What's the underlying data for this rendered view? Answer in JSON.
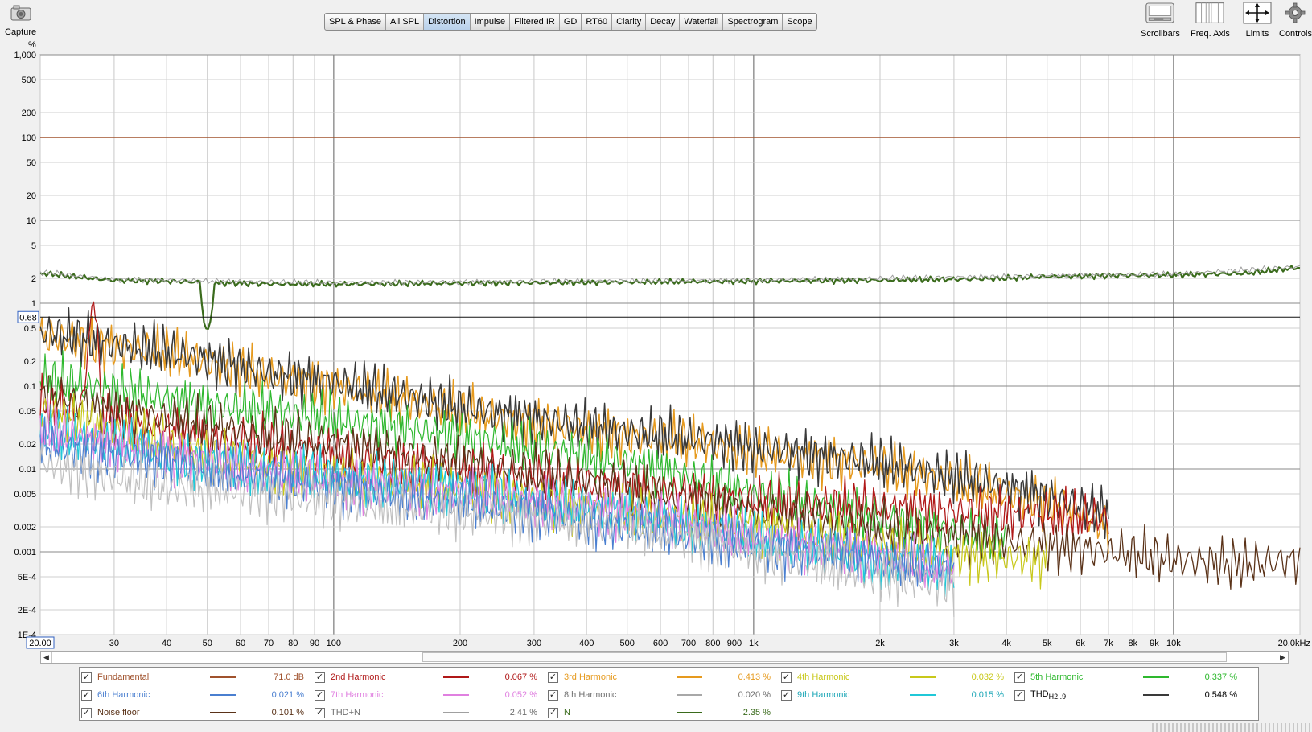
{
  "toolbar": {
    "capture_label": "Capture",
    "tabs": [
      "SPL & Phase",
      "All SPL",
      "Distortion",
      "Impulse",
      "Filtered IR",
      "GD",
      "RT60",
      "Clarity",
      "Decay",
      "Waterfall",
      "Spectrogram",
      "Scope"
    ],
    "active_tab": "Distortion",
    "right_buttons": [
      {
        "label": "Scrollbars",
        "icon": "scrollbars-icon"
      },
      {
        "label": "Freq. Axis",
        "icon": "freq-axis-icon"
      },
      {
        "label": "Limits",
        "icon": "limits-icon"
      },
      {
        "label": "Controls",
        "icon": "gear-icon"
      }
    ]
  },
  "graph": {
    "y_unit": "%",
    "cursor_value": "0.68",
    "x_start_value": "20.00",
    "x_end_value": "20.0kHz"
  },
  "chart_data": {
    "type": "line",
    "x_scale": "log",
    "y_scale": "log",
    "xlim": [
      20,
      20000
    ],
    "ylim": [
      0.0001,
      1000
    ],
    "x_ticks": [
      {
        "v": 30,
        "t": "30"
      },
      {
        "v": 40,
        "t": "40"
      },
      {
        "v": 50,
        "t": "50"
      },
      {
        "v": 60,
        "t": "60"
      },
      {
        "v": 70,
        "t": "70"
      },
      {
        "v": 80,
        "t": "80"
      },
      {
        "v": 90,
        "t": "90"
      },
      {
        "v": 100,
        "t": "100"
      },
      {
        "v": 200,
        "t": "200"
      },
      {
        "v": 300,
        "t": "300"
      },
      {
        "v": 400,
        "t": "400"
      },
      {
        "v": 500,
        "t": "500"
      },
      {
        "v": 600,
        "t": "600"
      },
      {
        "v": 700,
        "t": "700"
      },
      {
        "v": 800,
        "t": "800"
      },
      {
        "v": 900,
        "t": "900"
      },
      {
        "v": 1000,
        "t": "1k"
      },
      {
        "v": 2000,
        "t": "2k"
      },
      {
        "v": 3000,
        "t": "3k"
      },
      {
        "v": 4000,
        "t": "4k"
      },
      {
        "v": 5000,
        "t": "5k"
      },
      {
        "v": 6000,
        "t": "6k"
      },
      {
        "v": 7000,
        "t": "7k"
      },
      {
        "v": 8000,
        "t": "8k"
      },
      {
        "v": 9000,
        "t": "9k"
      },
      {
        "v": 10000,
        "t": "10k"
      }
    ],
    "y_ticks": [
      {
        "v": 1000,
        "t": "1,000"
      },
      {
        "v": 500,
        "t": "500"
      },
      {
        "v": 200,
        "t": "200"
      },
      {
        "v": 100,
        "t": "100"
      },
      {
        "v": 50,
        "t": "50"
      },
      {
        "v": 20,
        "t": "20"
      },
      {
        "v": 10,
        "t": "10"
      },
      {
        "v": 5,
        "t": "5"
      },
      {
        "v": 2,
        "t": "2"
      },
      {
        "v": 1,
        "t": "1"
      },
      {
        "v": 0.5,
        "t": "0.5"
      },
      {
        "v": 0.2,
        "t": "0.2"
      },
      {
        "v": 0.1,
        "t": "0.1"
      },
      {
        "v": 0.05,
        "t": "0.05"
      },
      {
        "v": 0.02,
        "t": "0.02"
      },
      {
        "v": 0.01,
        "t": "0.01"
      },
      {
        "v": 0.005,
        "t": "0.005"
      },
      {
        "v": 0.002,
        "t": "0.002"
      },
      {
        "v": 0.001,
        "t": "0.001"
      },
      {
        "v": 0.0005,
        "t": "5E-4"
      },
      {
        "v": 0.0002,
        "t": "2E-4"
      },
      {
        "v": 0.0001,
        "t": "1E-4"
      }
    ],
    "cursor_y": 0.68,
    "series": [
      {
        "name": "Fundamental",
        "color": "#a0522d",
        "width": 1.6,
        "x": [
          20,
          20000
        ],
        "y": [
          100,
          100
        ]
      },
      {
        "name": "N",
        "color": "#3a6b1c",
        "width": 2.2,
        "x": [
          20,
          22,
          25,
          30,
          40,
          48,
          49,
          50,
          51,
          52,
          55,
          70,
          100,
          200,
          500,
          1000,
          2000,
          3000,
          4000,
          5000,
          7000,
          10000,
          15000,
          20000
        ],
        "y": [
          2.3,
          2.2,
          2.05,
          1.9,
          1.85,
          1.8,
          0.6,
          0.45,
          0.6,
          1.75,
          1.75,
          1.72,
          1.7,
          1.75,
          1.8,
          1.85,
          1.9,
          1.95,
          2.0,
          2.1,
          2.15,
          2.2,
          2.3,
          2.7
        ]
      },
      {
        "name": "THD+N",
        "color": "#a0a0a0",
        "width": 1.0,
        "x": [
          20,
          22,
          25,
          30,
          40,
          50,
          100,
          1000,
          10000,
          20000
        ],
        "y": [
          2.35,
          2.3,
          2.1,
          1.95,
          1.9,
          1.85,
          1.78,
          1.9,
          2.25,
          2.75
        ]
      },
      {
        "name": "3rd Harmonic",
        "color": "#e69a1e",
        "width": 1.5,
        "x": [
          20,
          25,
          30,
          40,
          50,
          70,
          100,
          150,
          200,
          300,
          500,
          800,
          1000,
          2000,
          3000,
          4000,
          5000,
          6000,
          7000
        ],
        "y": [
          0.4,
          0.35,
          0.3,
          0.25,
          0.2,
          0.13,
          0.1,
          0.07,
          0.05,
          0.035,
          0.025,
          0.02,
          0.016,
          0.011,
          0.007,
          0.005,
          0.004,
          0.003,
          0.002
        ]
      },
      {
        "name": "THD H2..9",
        "color": "#3a3a3a",
        "width": 1.5,
        "x": [
          20,
          25,
          30,
          40,
          50,
          70,
          100,
          150,
          200,
          300,
          500,
          800,
          1000,
          2000,
          3000,
          4000,
          5000,
          6000,
          7000
        ],
        "y": [
          0.45,
          0.38,
          0.32,
          0.26,
          0.21,
          0.14,
          0.11,
          0.075,
          0.055,
          0.04,
          0.028,
          0.022,
          0.018,
          0.012,
          0.008,
          0.006,
          0.0045,
          0.0035,
          0.003
        ]
      },
      {
        "name": "5th Harmonic",
        "color": "#2eb82e",
        "width": 1.2,
        "x": [
          20,
          30,
          40,
          50,
          70,
          100,
          200,
          300,
          500,
          700,
          1000,
          1500,
          2000,
          3000,
          4000
        ],
        "y": [
          0.12,
          0.09,
          0.07,
          0.06,
          0.05,
          0.04,
          0.025,
          0.018,
          0.012,
          0.008,
          0.005,
          0.0035,
          0.0025,
          0.0018,
          0.0014
        ]
      },
      {
        "name": "2nd Harmonic",
        "color": "#b01818",
        "width": 1.3,
        "x": [
          20,
          25,
          27,
          28,
          30,
          40,
          50,
          70,
          100,
          200,
          300,
          500,
          1000,
          2000,
          3000,
          5000,
          7000
        ],
        "y": [
          0.06,
          0.05,
          1.5,
          0.05,
          0.04,
          0.03,
          0.025,
          0.02,
          0.015,
          0.01,
          0.008,
          0.006,
          0.004,
          0.0035,
          0.003,
          0.0028,
          0.0025
        ]
      },
      {
        "name": "Noise floor",
        "color": "#5a3218",
        "width": 1.3,
        "x": [
          20,
          25,
          30,
          40,
          50,
          70,
          100,
          200,
          300,
          500,
          1000,
          2000,
          3000,
          5000,
          7000,
          10000,
          15000,
          20000
        ],
        "y": [
          0.1,
          0.06,
          0.05,
          0.04,
          0.035,
          0.025,
          0.02,
          0.012,
          0.009,
          0.006,
          0.003,
          0.002,
          0.0015,
          0.0012,
          0.001,
          0.0008,
          0.0007,
          0.0008
        ]
      },
      {
        "name": "4th Harmonic",
        "color": "#c8c81a",
        "width": 1.2,
        "x": [
          20,
          30,
          40,
          50,
          70,
          100,
          200,
          300,
          500,
          1000,
          2000,
          3000,
          5000
        ],
        "y": [
          0.05,
          0.03,
          0.02,
          0.015,
          0.011,
          0.008,
          0.006,
          0.004,
          0.003,
          0.002,
          0.0012,
          0.0009,
          0.0008
        ]
      },
      {
        "name": "9th Harmonic",
        "color": "#20c8d8",
        "width": 1.3,
        "x": [
          20,
          30,
          40,
          50,
          70,
          100,
          200,
          300,
          500,
          1000,
          2000,
          3000
        ],
        "y": [
          0.03,
          0.02,
          0.015,
          0.012,
          0.01,
          0.008,
          0.006,
          0.004,
          0.003,
          0.0015,
          0.0008,
          0.0006
        ]
      },
      {
        "name": "7th Harmonic",
        "color": "#e080e0",
        "width": 1.2,
        "x": [
          20,
          30,
          40,
          50,
          70,
          100,
          200,
          300,
          500,
          1000,
          2000,
          3000
        ],
        "y": [
          0.03,
          0.02,
          0.015,
          0.012,
          0.009,
          0.007,
          0.005,
          0.004,
          0.003,
          0.0015,
          0.0009,
          0.0006
        ]
      },
      {
        "name": "6th Harmonic",
        "color": "#4a7fd0",
        "width": 1.2,
        "x": [
          20,
          30,
          40,
          50,
          70,
          100,
          200,
          300,
          500,
          1000,
          2000,
          3000
        ],
        "y": [
          0.02,
          0.015,
          0.012,
          0.01,
          0.008,
          0.006,
          0.004,
          0.003,
          0.002,
          0.0012,
          0.0008,
          0.0006
        ]
      },
      {
        "name": "8th Harmonic",
        "color": "#c0c0c0",
        "width": 1.2,
        "x": [
          20,
          30,
          40,
          50,
          70,
          100,
          200,
          300,
          500,
          1000,
          2000,
          3000
        ],
        "y": [
          0.012,
          0.008,
          0.006,
          0.006,
          0.005,
          0.004,
          0.003,
          0.0025,
          0.002,
          0.001,
          0.0005,
          0.0004
        ]
      }
    ]
  },
  "legend": {
    "items": [
      {
        "name": "Fundamental",
        "value": "71.0 dB",
        "color": "#a0522d",
        "name_color": "#a0522d"
      },
      {
        "name": "2nd Harmonic",
        "value": "0.067 %",
        "color": "#b01818",
        "name_color": "#b01818"
      },
      {
        "name": "3rd Harmonic",
        "value": "0.413 %",
        "color": "#e69a1e",
        "name_color": "#e69a1e"
      },
      {
        "name": "4th Harmonic",
        "value": "0.032 %",
        "color": "#c8c81a",
        "name_color": "#c8c81a"
      },
      {
        "name": "5th Harmonic",
        "value": "0.337 %",
        "color": "#2eb82e",
        "name_color": "#2eb82e"
      },
      {
        "name": "6th Harmonic",
        "value": "0.021 %",
        "color": "#4a7fd0",
        "name_color": "#4a7fd0"
      },
      {
        "name": "7th Harmonic",
        "value": "0.052 %",
        "color": "#e080e0",
        "name_color": "#e080e0"
      },
      {
        "name": "8th Harmonic",
        "value": "0.020 %",
        "color": "#a8a8a8",
        "name_color": "#707070"
      },
      {
        "name": "9th Harmonic",
        "value": "0.015 %",
        "color": "#20c8d8",
        "name_color": "#20a8b8"
      },
      {
        "name": "THD",
        "subscript": "H2..9",
        "value": "0.548 %",
        "color": "#3a3a3a",
        "name_color": "#000000"
      },
      {
        "name": "Noise floor",
        "value": "0.101 %",
        "color": "#5a3218",
        "name_color": "#5a3218"
      },
      {
        "name": "THD+N",
        "value": "2.41 %",
        "color": "#a0a0a0",
        "name_color": "#707070"
      },
      {
        "name": "N",
        "value": "2.35 %",
        "color": "#3a6b1c",
        "name_color": "#3a6b1c"
      }
    ]
  }
}
